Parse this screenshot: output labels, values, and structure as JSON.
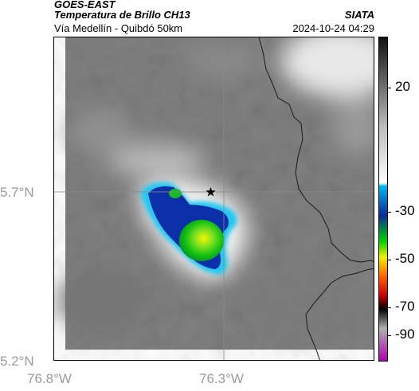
{
  "header": {
    "satellite": "GOES-EAST",
    "product": "Temperatura de Brillo CH13",
    "region": "Vía Medellín - Quibdó 50km",
    "agency": "SIATA",
    "timestamp": "2024-10-24 04:29"
  },
  "axes": {
    "lat_ticks": [
      "5.7°N",
      "5.2°N"
    ],
    "lon_ticks": [
      "76.8°W",
      "76.3°W"
    ]
  },
  "colorbar": {
    "labels": [
      "20",
      "-30",
      "-50",
      "-70",
      "-90"
    ],
    "stops": [
      "#111111",
      "#bdbdbd",
      "#ffffff",
      "#00b8f0",
      "#0a2a9a",
      "#00d000",
      "#f0f000",
      "#ff6000",
      "#c00000",
      "#000000",
      "#b0b0b0",
      "#b000b0"
    ]
  },
  "map": {
    "marker": "star",
    "grid_color": "#888888",
    "background_gray": "#808080"
  }
}
